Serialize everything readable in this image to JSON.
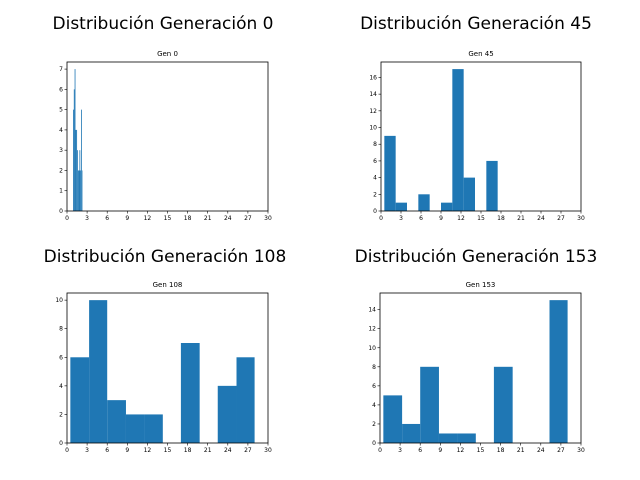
{
  "chart_data": [
    {
      "type": "bar",
      "suptitle": "Distribución Generación 0",
      "title": "Gen 0",
      "xlim": [
        0,
        30
      ],
      "ylim": [
        0,
        7.35
      ],
      "xticks": [
        0,
        3,
        6,
        9,
        12,
        15,
        18,
        21,
        24,
        27,
        30
      ],
      "yticks": [
        0,
        1,
        2,
        3,
        4,
        5,
        6,
        7
      ],
      "bars": [
        {
          "x0": 0.9,
          "x1": 1.02,
          "value": 5
        },
        {
          "x0": 1.02,
          "x1": 1.14,
          "value": 6
        },
        {
          "x0": 1.14,
          "x1": 1.26,
          "value": 7
        },
        {
          "x0": 1.26,
          "x1": 1.38,
          "value": 4
        },
        {
          "x0": 1.38,
          "x1": 1.5,
          "value": 4
        },
        {
          "x0": 1.5,
          "x1": 1.62,
          "value": 3
        },
        {
          "x0": 1.62,
          "x1": 1.74,
          "value": 2
        },
        {
          "x0": 1.74,
          "x1": 1.86,
          "value": 2
        },
        {
          "x0": 1.86,
          "x1": 1.98,
          "value": 3
        },
        {
          "x0": 1.98,
          "x1": 2.1,
          "value": 2
        },
        {
          "x0": 2.1,
          "x1": 2.22,
          "value": 5
        },
        {
          "x0": 2.22,
          "x1": 2.3,
          "value": 2
        }
      ]
    },
    {
      "type": "bar",
      "suptitle": "Distribución Generación 45",
      "title": "Gen 45",
      "xlim": [
        0,
        30
      ],
      "ylim": [
        0,
        17.85
      ],
      "xticks": [
        0,
        3,
        6,
        9,
        12,
        15,
        18,
        21,
        24,
        27,
        30
      ],
      "yticks": [
        0,
        2,
        4,
        6,
        8,
        10,
        12,
        14,
        16
      ],
      "bars": [
        {
          "x0": 0.5,
          "x1": 2.2,
          "value": 9
        },
        {
          "x0": 2.2,
          "x1": 3.9,
          "value": 1
        },
        {
          "x0": 3.9,
          "x1": 5.6,
          "value": 0
        },
        {
          "x0": 5.6,
          "x1": 7.3,
          "value": 2
        },
        {
          "x0": 7.3,
          "x1": 9.0,
          "value": 0
        },
        {
          "x0": 9.0,
          "x1": 10.7,
          "value": 1
        },
        {
          "x0": 10.7,
          "x1": 12.4,
          "value": 17
        },
        {
          "x0": 12.4,
          "x1": 14.1,
          "value": 4
        },
        {
          "x0": 14.1,
          "x1": 15.8,
          "value": 0
        },
        {
          "x0": 15.8,
          "x1": 17.5,
          "value": 6
        }
      ]
    },
    {
      "type": "bar",
      "suptitle": "Distribución Generación 108",
      "title": "Gen 108",
      "xlim": [
        0,
        30
      ],
      "ylim": [
        0,
        10.5
      ],
      "xticks": [
        0,
        3,
        6,
        9,
        12,
        15,
        18,
        21,
        24,
        27,
        30
      ],
      "yticks": [
        0,
        2,
        4,
        6,
        8,
        10
      ],
      "bars": [
        {
          "x0": 0.5,
          "x1": 3.3,
          "value": 6
        },
        {
          "x0": 3.3,
          "x1": 6.0,
          "value": 10
        },
        {
          "x0": 6.0,
          "x1": 8.8,
          "value": 3
        },
        {
          "x0": 8.8,
          "x1": 11.5,
          "value": 2
        },
        {
          "x0": 11.5,
          "x1": 14.3,
          "value": 2
        },
        {
          "x0": 14.3,
          "x1": 17.0,
          "value": 0
        },
        {
          "x0": 17.0,
          "x1": 19.8,
          "value": 7
        },
        {
          "x0": 19.8,
          "x1": 22.5,
          "value": 0
        },
        {
          "x0": 22.5,
          "x1": 25.3,
          "value": 4
        },
        {
          "x0": 25.3,
          "x1": 28.0,
          "value": 6
        }
      ]
    },
    {
      "type": "bar",
      "suptitle": "Distribución Generación 153",
      "title": "Gen 153",
      "xlim": [
        0,
        30
      ],
      "ylim": [
        0,
        15.75
      ],
      "xticks": [
        0,
        3,
        6,
        9,
        12,
        15,
        18,
        21,
        24,
        27,
        30
      ],
      "yticks": [
        0,
        2,
        4,
        6,
        8,
        10,
        12,
        14
      ],
      "bars": [
        {
          "x0": 0.5,
          "x1": 3.3,
          "value": 5
        },
        {
          "x0": 3.3,
          "x1": 6.0,
          "value": 2
        },
        {
          "x0": 6.0,
          "x1": 8.8,
          "value": 8
        },
        {
          "x0": 8.8,
          "x1": 11.5,
          "value": 1
        },
        {
          "x0": 11.5,
          "x1": 14.3,
          "value": 1
        },
        {
          "x0": 14.3,
          "x1": 17.0,
          "value": 0
        },
        {
          "x0": 17.0,
          "x1": 19.8,
          "value": 8
        },
        {
          "x0": 19.8,
          "x1": 22.5,
          "value": 0
        },
        {
          "x0": 22.5,
          "x1": 25.3,
          "value": 0
        },
        {
          "x0": 25.3,
          "x1": 28.0,
          "value": 15
        }
      ]
    }
  ],
  "colors": {
    "bar": "#1f77b4",
    "axis": "#000000"
  }
}
